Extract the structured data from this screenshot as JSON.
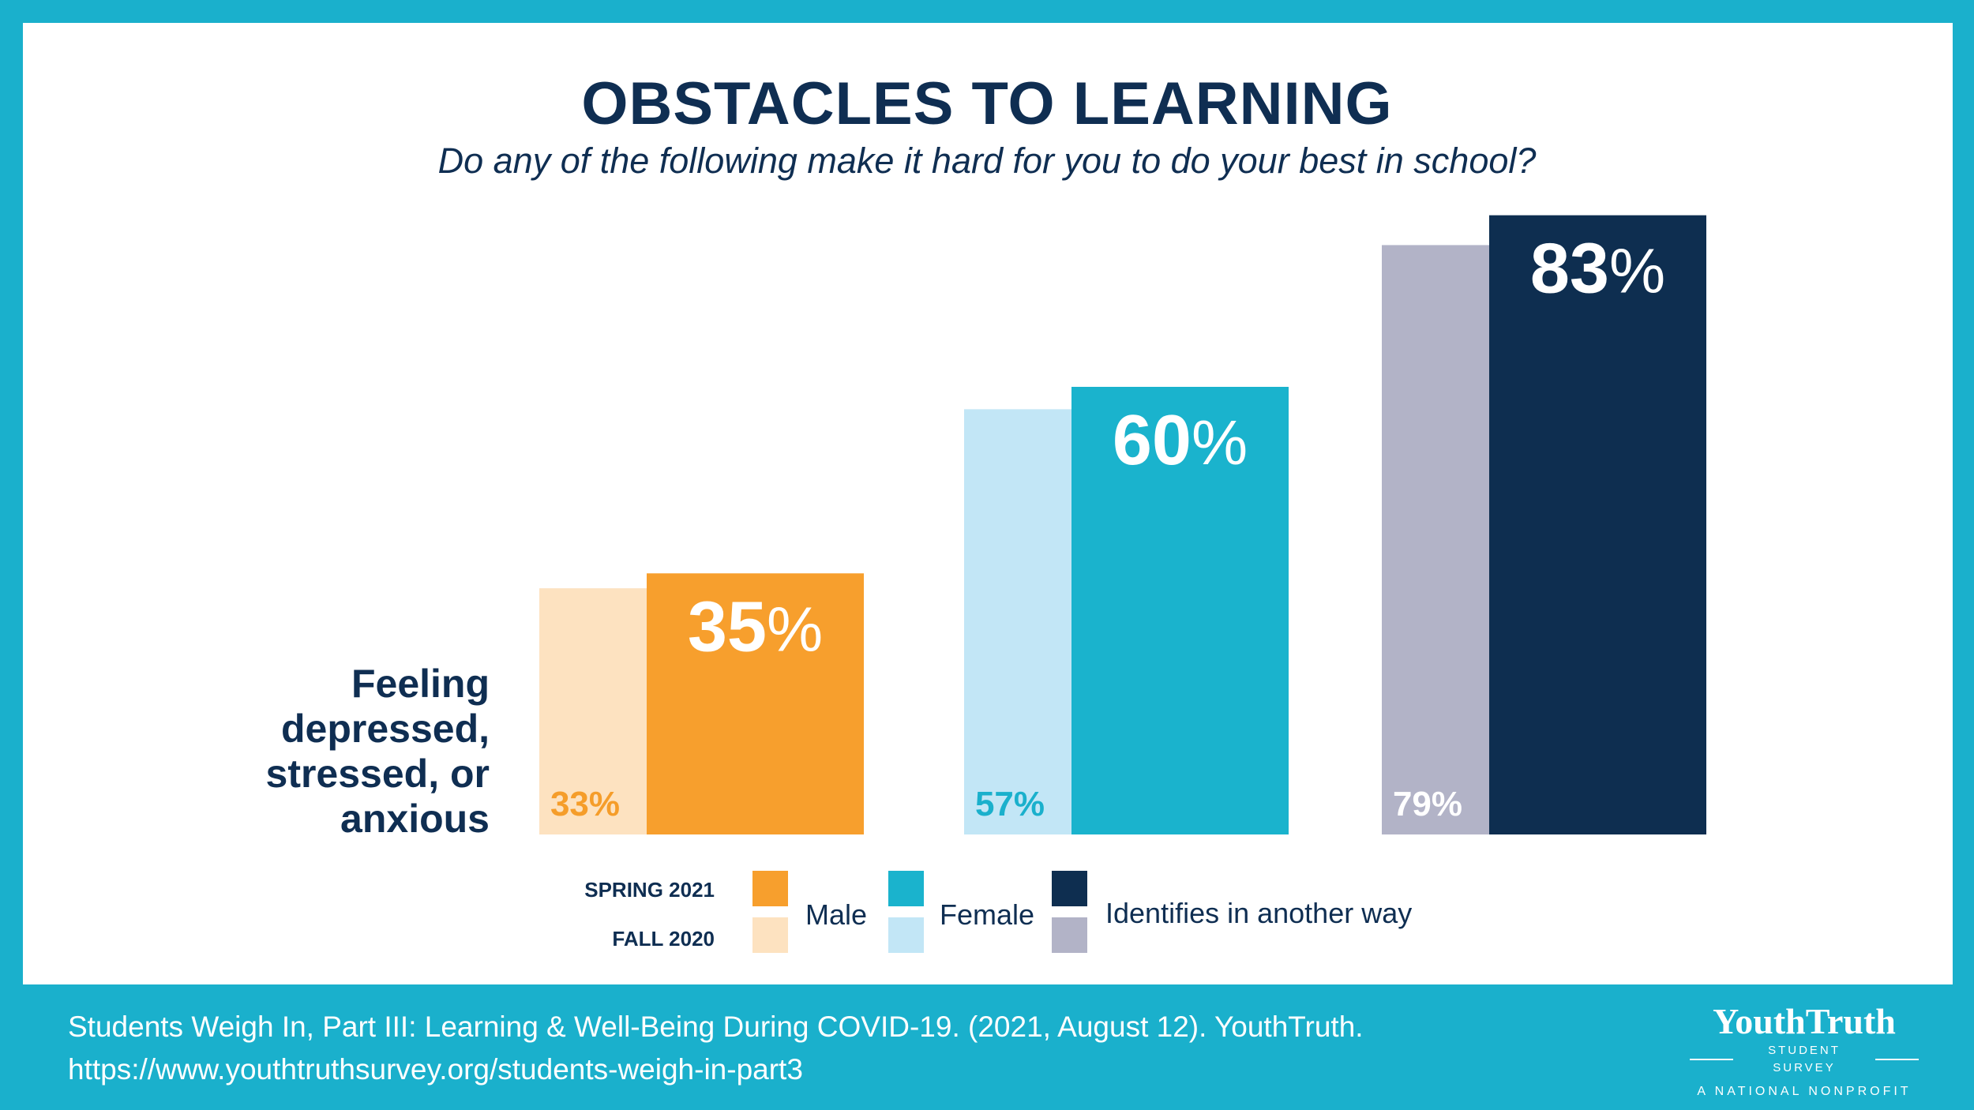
{
  "title": "OBSTACLES TO LEARNING",
  "subtitle": "Do any of the following make it hard for you to do your best in school?",
  "chart_data": {
    "type": "bar",
    "category_label_lines": [
      "Feeling",
      "depressed,",
      "stressed, or",
      "anxious"
    ],
    "groups": [
      "Male",
      "Female",
      "Identifies in another way"
    ],
    "series": [
      {
        "name": "FALL 2020",
        "values": [
          33,
          57,
          79
        ],
        "labels": [
          "33%",
          "57%",
          "79%"
        ],
        "colors": [
          "#fde2c0",
          "#c2e6f6",
          "#b2b3c7"
        ],
        "label_colors": [
          "#f59d2a",
          "#1ab0cc",
          "#ffffff"
        ]
      },
      {
        "name": "SPRING 2021",
        "values": [
          35,
          60,
          83
        ],
        "labels": [
          "35",
          "60",
          "83"
        ],
        "colors": [
          "#f79f2d",
          "#1ab3cd",
          "#0e2e50"
        ],
        "label_colors": [
          "#ffffff",
          "#ffffff",
          "#ffffff"
        ]
      }
    ],
    "percent_sign": "%",
    "ylim": [
      0,
      100
    ],
    "grid": false,
    "legend": {
      "position": "bottom",
      "row_labels": [
        "SPRING 2021",
        "FALL 2020"
      ]
    }
  },
  "footer": {
    "citation_line1": "Students Weigh In, Part III: Learning & Well-Being During COVID-19. (2021, August 12). YouthTruth.",
    "citation_line2": "https://www.youthtruthsurvey.org/students-weigh-in-part3"
  },
  "logo": {
    "wordmark": "YouthTruth",
    "subtitle": "STUDENT SURVEY",
    "tagline": "A NATIONAL NONPROFIT"
  },
  "colors": {
    "frame": "#1ab0cc",
    "navy": "#0f2e52"
  }
}
